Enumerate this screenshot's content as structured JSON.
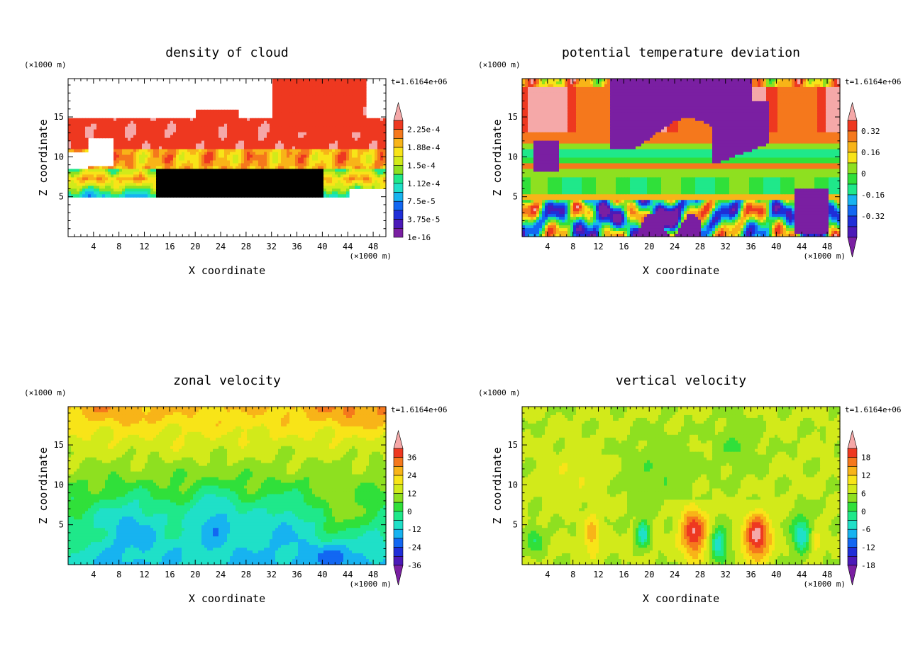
{
  "palette": [
    "#7a1fa2",
    "#4b19b8",
    "#1f2ed8",
    "#1267f2",
    "#17b3f0",
    "#1fe0c8",
    "#1fe88a",
    "#30e03a",
    "#8ee020",
    "#d2ea1a",
    "#f8e418",
    "#f8b418",
    "#f5781c",
    "#ee3820",
    "#f5a8a8"
  ],
  "chart_data": [
    {
      "type": "heatmap",
      "title": "density of cloud",
      "xlabel": "X coordinate",
      "ylabel": "Z coordinate",
      "x_unit": "(×1000 m)",
      "y_unit": "(×1000 m)",
      "time_label": "t=1.6164e+06",
      "xlim": [
        0,
        50
      ],
      "ylim": [
        0,
        19.8
      ],
      "x_ticks": [
        4,
        8,
        12,
        16,
        20,
        24,
        28,
        32,
        36,
        40,
        44,
        48
      ],
      "y_ticks": [
        5,
        10,
        15
      ],
      "colorbar": {
        "labels": [
          "2.25e-4",
          "1.88e-4",
          "1.5e-4",
          "1.12e-4",
          "7.5e-5",
          "3.75e-5",
          "1e-16"
        ],
        "colors": [
          "#f5a8a8",
          "#ee3820",
          "#f5781c",
          "#f8b418",
          "#f8e418",
          "#d2ea1a",
          "#8ee020",
          "#1fe88a",
          "#1fe0c8",
          "#17b3f0",
          "#1267f2",
          "#1f2ed8",
          "#4b19b8",
          "#7a1fa2"
        ],
        "top_triangle": true,
        "bottom_triangle": false
      },
      "field": "cloud"
    },
    {
      "type": "heatmap",
      "title": "potential temperature deviation",
      "xlabel": "X coordinate",
      "ylabel": "Z coordinate",
      "x_unit": "(×1000 m)",
      "y_unit": "(×1000 m)",
      "time_label": "t=1.6164e+06",
      "xlim": [
        0,
        50
      ],
      "ylim": [
        0,
        19.8
      ],
      "x_ticks": [
        4,
        8,
        12,
        16,
        20,
        24,
        28,
        32,
        36,
        40,
        44,
        48
      ],
      "y_ticks": [
        5,
        10,
        15
      ],
      "colorbar": {
        "labels": [
          "0.32",
          "0.16",
          "0",
          "-0.16",
          "-0.32"
        ],
        "colors": [
          "#f5a8a8",
          "#ee3820",
          "#f5781c",
          "#f8b418",
          "#f8e418",
          "#8ee020",
          "#30e03a",
          "#1fe88a",
          "#17b3f0",
          "#1267f2",
          "#1f2ed8",
          "#4b19b8",
          "#7a1fa2"
        ],
        "top_triangle": true,
        "bottom_triangle": true
      },
      "field": "theta"
    },
    {
      "type": "heatmap",
      "title": "zonal velocity",
      "xlabel": "X coordinate",
      "ylabel": "Z coordinate",
      "x_unit": "(×1000 m)",
      "y_unit": "(×1000 m)",
      "time_label": "t=1.6164e+06",
      "xlim": [
        0,
        50
      ],
      "ylim": [
        0,
        19.8
      ],
      "x_ticks": [
        4,
        8,
        12,
        16,
        20,
        24,
        28,
        32,
        36,
        40,
        44,
        48
      ],
      "y_ticks": [
        5,
        10,
        15
      ],
      "colorbar": {
        "labels": [
          "36",
          "24",
          "12",
          "0",
          "-12",
          "-24",
          "-36"
        ],
        "colors": [
          "#f5a8a8",
          "#ee3820",
          "#f5781c",
          "#f8b418",
          "#f8e418",
          "#d2ea1a",
          "#8ee020",
          "#30e03a",
          "#1fe88a",
          "#1fe0c8",
          "#17b3f0",
          "#1267f2",
          "#1f2ed8",
          "#4b19b8",
          "#7a1fa2"
        ],
        "top_triangle": true,
        "bottom_triangle": true
      },
      "field": "u"
    },
    {
      "type": "heatmap",
      "title": "vertical velocity",
      "xlabel": "X coordinate",
      "ylabel": "Z coordinate",
      "x_unit": "(×1000 m)",
      "y_unit": "(×1000 m)",
      "time_label": "t=1.6164e+06",
      "xlim": [
        0,
        50
      ],
      "ylim": [
        0,
        19.8
      ],
      "x_ticks": [
        4,
        8,
        12,
        16,
        20,
        24,
        28,
        32,
        36,
        40,
        44,
        48
      ],
      "y_ticks": [
        5,
        10,
        15
      ],
      "colorbar": {
        "labels": [
          "18",
          "12",
          "6",
          "0",
          "-6",
          "-12",
          "-18"
        ],
        "colors": [
          "#f5a8a8",
          "#ee3820",
          "#f5781c",
          "#f8b418",
          "#f8e418",
          "#d2ea1a",
          "#8ee020",
          "#30e03a",
          "#1fe88a",
          "#1fe0c8",
          "#17b3f0",
          "#1267f2",
          "#1f2ed8",
          "#4b19b8",
          "#7a1fa2"
        ],
        "top_triangle": true,
        "bottom_triangle": true
      },
      "field": "w"
    }
  ]
}
